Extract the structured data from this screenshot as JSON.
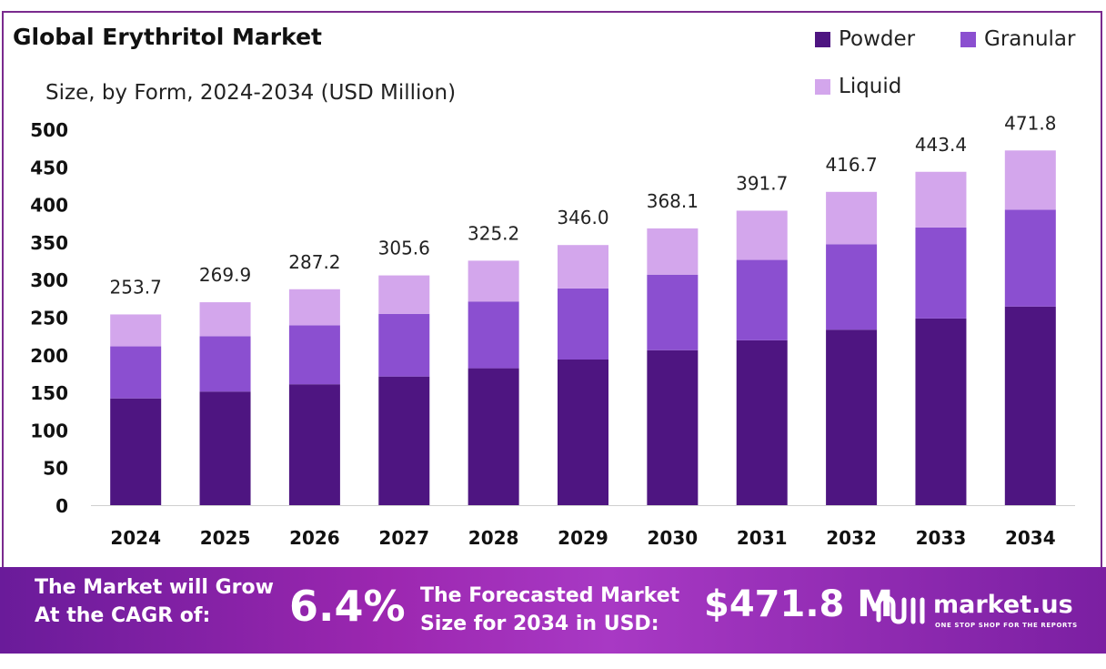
{
  "header": {
    "title": "Global Erythritol Market",
    "subtitle": "Size, by Form, 2024-2034 (USD Million)"
  },
  "colors": {
    "powder": "#4e1581",
    "granular": "#8b4fd0",
    "liquid": "#d3a6ec",
    "frame": "#7a2a8e"
  },
  "chart_data": {
    "type": "bar",
    "stacked": true,
    "title": "Global Erythritol Market",
    "subtitle": "Size, by Form, 2024-2034 (USD Million)",
    "categories": [
      "2024",
      "2025",
      "2026",
      "2027",
      "2028",
      "2029",
      "2030",
      "2031",
      "2032",
      "2033",
      "2034"
    ],
    "series": [
      {
        "name": "Powder",
        "values": [
          142.0,
          151.1,
          160.8,
          171.1,
          182.1,
          193.7,
          206.1,
          219.3,
          233.4,
          248.3,
          264.2
        ]
      },
      {
        "name": "Granular",
        "values": [
          69.2,
          73.7,
          78.4,
          83.4,
          88.8,
          94.5,
          100.5,
          106.9,
          113.7,
          121.1,
          128.8
        ]
      },
      {
        "name": "Liquid",
        "values": [
          42.5,
          45.1,
          48.0,
          51.1,
          54.3,
          57.8,
          61.5,
          65.5,
          69.6,
          74.0,
          78.8
        ]
      }
    ],
    "totals": [
      "253.7",
      "269.9",
      "287.2",
      "305.6",
      "325.2",
      "346.0",
      "368.1",
      "391.7",
      "416.7",
      "443.4",
      "471.8"
    ],
    "y_ticks": [
      "0",
      "50",
      "100",
      "150",
      "200",
      "250",
      "300",
      "350",
      "400",
      "450",
      "500"
    ],
    "ylim": [
      0,
      500
    ],
    "xlabel": "",
    "ylabel": "",
    "legend": [
      "Powder",
      "Granular",
      "Liquid"
    ],
    "legend_position": "top-right",
    "grid": false
  },
  "footer": {
    "cagr_label_line1": "The Market will Grow",
    "cagr_label_line2": "At the CAGR of:",
    "cagr_value": "6.4%",
    "forecast_label_line1": "The Forecasted Market",
    "forecast_label_line2": "Size for 2034 in USD:",
    "forecast_value": "$471.8 M",
    "logo_name": "market.us",
    "logo_tagline": "ONE STOP SHOP FOR THE REPORTS"
  }
}
